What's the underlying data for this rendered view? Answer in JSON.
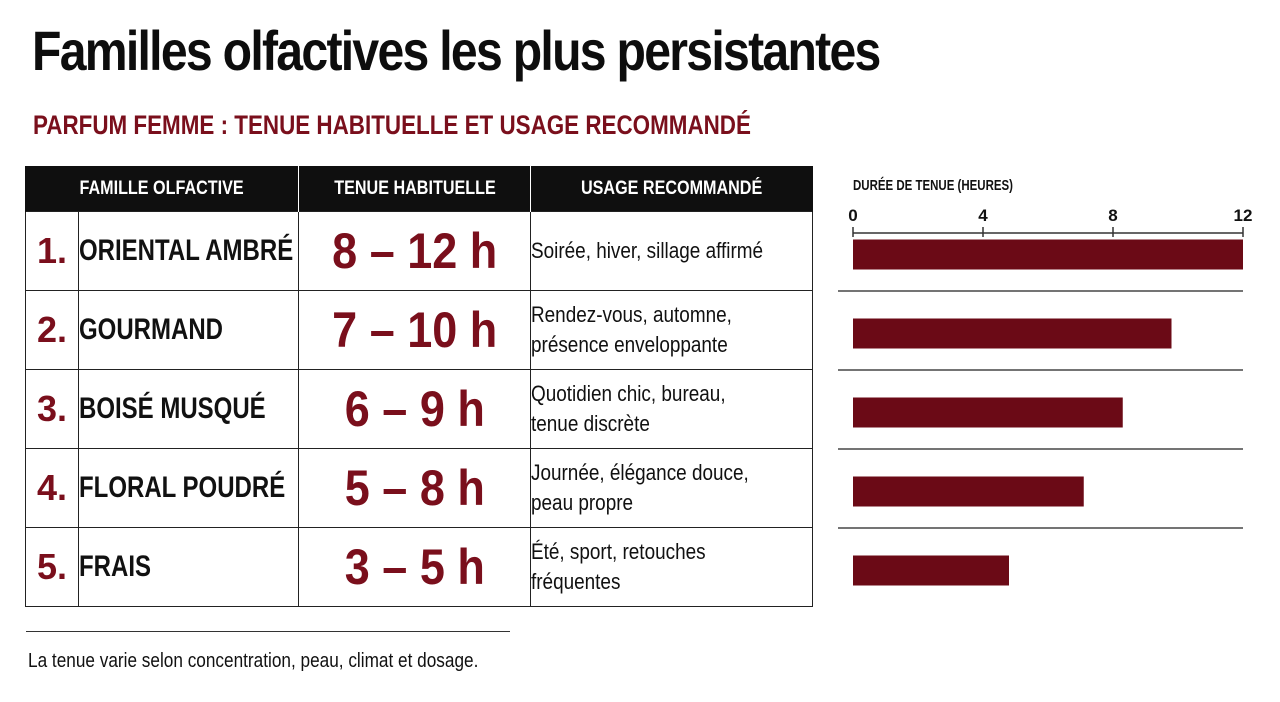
{
  "title": "Familles olfactives les plus persistantes",
  "subtitle": "PARFUM FEMME : TENUE HABITUELLE ET USAGE RECOMMANDÉ",
  "table": {
    "headers": [
      "FAMILLE OLFACTIVE",
      "TENUE HABITUELLE",
      "USAGE RECOMMANDÉ"
    ],
    "rows": [
      {
        "rank": "1.",
        "family": "ORIENTAL AMBRÉ",
        "duration": "8 – 12 h",
        "usage": "Soirée, hiver, sillage affirmé"
      },
      {
        "rank": "2.",
        "family": "GOURMAND",
        "duration": "7 – 10 h",
        "usage": "Rendez-vous, automne,\nprésence enveloppante"
      },
      {
        "rank": "3.",
        "family": "BOISÉ MUSQUÉ",
        "duration": "6 – 9 h",
        "usage": "Quotidien chic, bureau,\ntenue discrète"
      },
      {
        "rank": "4.",
        "family": "FLORAL POUDRÉ",
        "duration": "5 – 8 h",
        "usage": "Journée, élégance douce,\npeau propre"
      },
      {
        "rank": "5.",
        "family": "FRAIS",
        "duration": "3 – 5 h",
        "usage": "Été, sport, retouches fréquentes"
      }
    ]
  },
  "chart_data": {
    "type": "bar",
    "orientation": "horizontal",
    "title": "DURÉE DE TENUE (HEURES)",
    "categories": [
      "ORIENTAL AMBRÉ",
      "GOURMAND",
      "BOISÉ MUSQUÉ",
      "FLORAL POUDRÉ",
      "FRAIS"
    ],
    "values": [
      12,
      9.8,
      8.3,
      7.1,
      4.8
    ],
    "xlim": [
      0,
      12
    ],
    "ticks": [
      "0",
      "4",
      "8",
      "12"
    ],
    "tick_values": [
      0,
      4,
      8,
      12
    ],
    "grid": false,
    "color": "#6b0a16"
  },
  "colors": {
    "accent": "#7a0f1c",
    "bar": "#6b0a16",
    "header_bg": "#0f0f0f"
  },
  "footnote": "La tenue varie selon concentration, peau, climat et dosage."
}
